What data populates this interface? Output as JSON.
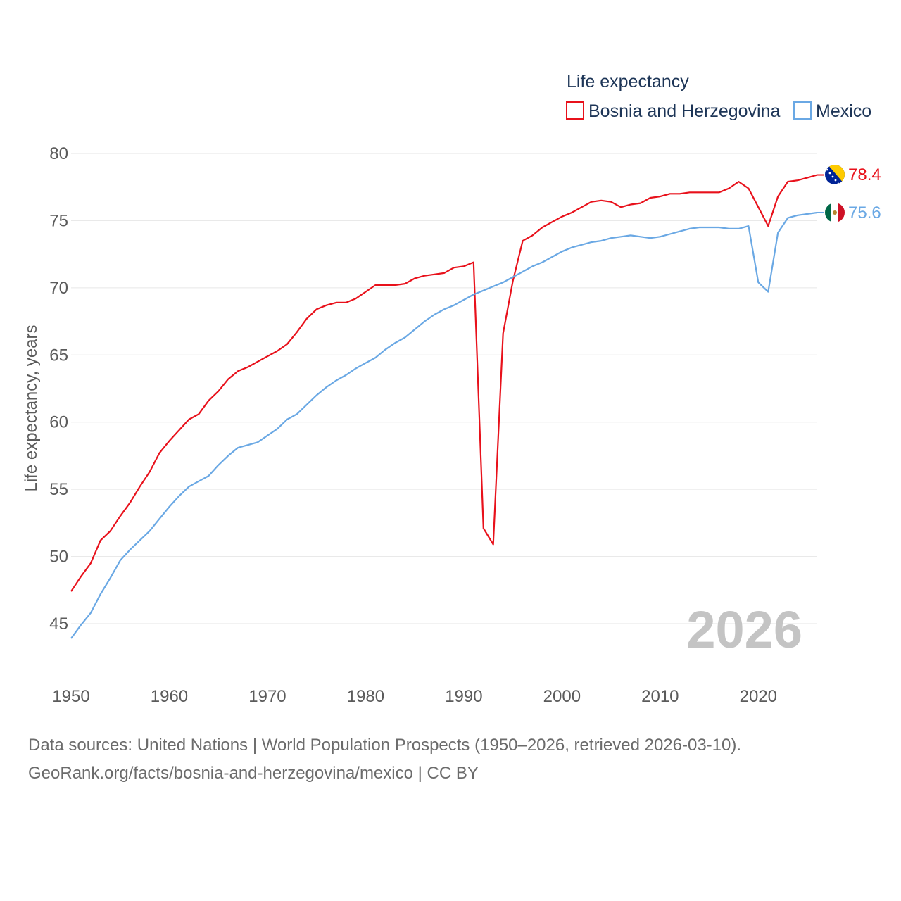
{
  "chart_data": {
    "type": "line",
    "legend_title": "Life expectancy",
    "ylabel": "Life expectancy, years",
    "xlabel": "",
    "xlim": [
      1950,
      2026
    ],
    "ylim": [
      43,
      81
    ],
    "yticks": [
      45,
      50,
      55,
      60,
      65,
      70,
      75,
      80
    ],
    "xticks": [
      1950,
      1960,
      1970,
      1980,
      1990,
      2000,
      2010,
      2020
    ],
    "legend_position": "top-right",
    "current_year": "2026",
    "x": [
      1950,
      1951,
      1952,
      1953,
      1954,
      1955,
      1956,
      1957,
      1958,
      1959,
      1960,
      1961,
      1962,
      1963,
      1964,
      1965,
      1966,
      1967,
      1968,
      1969,
      1970,
      1971,
      1972,
      1973,
      1974,
      1975,
      1976,
      1977,
      1978,
      1979,
      1980,
      1981,
      1982,
      1983,
      1984,
      1985,
      1986,
      1987,
      1988,
      1989,
      1990,
      1991,
      1992,
      1993,
      1994,
      1995,
      1996,
      1997,
      1998,
      1999,
      2000,
      2001,
      2002,
      2003,
      2004,
      2005,
      2006,
      2007,
      2008,
      2009,
      2010,
      2011,
      2012,
      2013,
      2014,
      2015,
      2016,
      2017,
      2018,
      2019,
      2020,
      2021,
      2022,
      2023,
      2024,
      2025,
      2026
    ],
    "series": [
      {
        "name": "Bosnia and Herzegovina",
        "color": "#e8111b",
        "flag": "bosnia-flag-icon",
        "end_label": "78.4",
        "values": [
          47.4,
          48.5,
          49.5,
          51.2,
          51.9,
          53.0,
          54.0,
          55.2,
          56.3,
          57.7,
          58.6,
          59.4,
          60.2,
          60.6,
          61.6,
          62.3,
          63.2,
          63.8,
          64.1,
          64.5,
          64.9,
          65.3,
          65.8,
          66.7,
          67.7,
          68.4,
          68.7,
          68.9,
          68.9,
          69.2,
          69.7,
          70.2,
          70.2,
          70.2,
          70.3,
          70.7,
          70.9,
          71.0,
          71.1,
          71.5,
          71.6,
          71.9,
          52.1,
          50.9,
          66.6,
          70.5,
          73.5,
          73.9,
          74.5,
          74.9,
          75.3,
          75.6,
          76.0,
          76.4,
          76.5,
          76.4,
          76.0,
          76.2,
          76.3,
          76.7,
          76.8,
          77.0,
          77.0,
          77.1,
          77.1,
          77.1,
          77.1,
          77.4,
          77.9,
          77.4,
          76.0,
          74.6,
          76.8,
          77.9,
          78.0,
          78.2,
          78.4
        ]
      },
      {
        "name": "Mexico",
        "color": "#6aa8e4",
        "flag": "mexico-flag-icon",
        "end_label": "75.6",
        "values": [
          43.9,
          44.9,
          45.8,
          47.2,
          48.4,
          49.7,
          50.5,
          51.2,
          51.9,
          52.8,
          53.7,
          54.5,
          55.2,
          55.6,
          56.0,
          56.8,
          57.5,
          58.1,
          58.3,
          58.5,
          59.0,
          59.5,
          60.2,
          60.6,
          61.3,
          62.0,
          62.6,
          63.1,
          63.5,
          64.0,
          64.4,
          64.8,
          65.4,
          65.9,
          66.3,
          66.9,
          67.5,
          68.0,
          68.4,
          68.7,
          69.1,
          69.5,
          69.8,
          70.1,
          70.4,
          70.8,
          71.2,
          71.6,
          71.9,
          72.3,
          72.7,
          73.0,
          73.2,
          73.4,
          73.5,
          73.7,
          73.8,
          73.9,
          73.8,
          73.7,
          73.8,
          74.0,
          74.2,
          74.4,
          74.5,
          74.5,
          74.5,
          74.4,
          74.4,
          74.6,
          70.4,
          69.7,
          74.1,
          75.2,
          75.4,
          75.5,
          75.6
        ]
      }
    ]
  },
  "footer": {
    "sources": "Data sources: United Nations | World Population Prospects (1950–2026, retrieved 2026-03-10).",
    "link": "GeoRank.org/facts/bosnia-and-herzegovina/mexico | CC BY"
  }
}
